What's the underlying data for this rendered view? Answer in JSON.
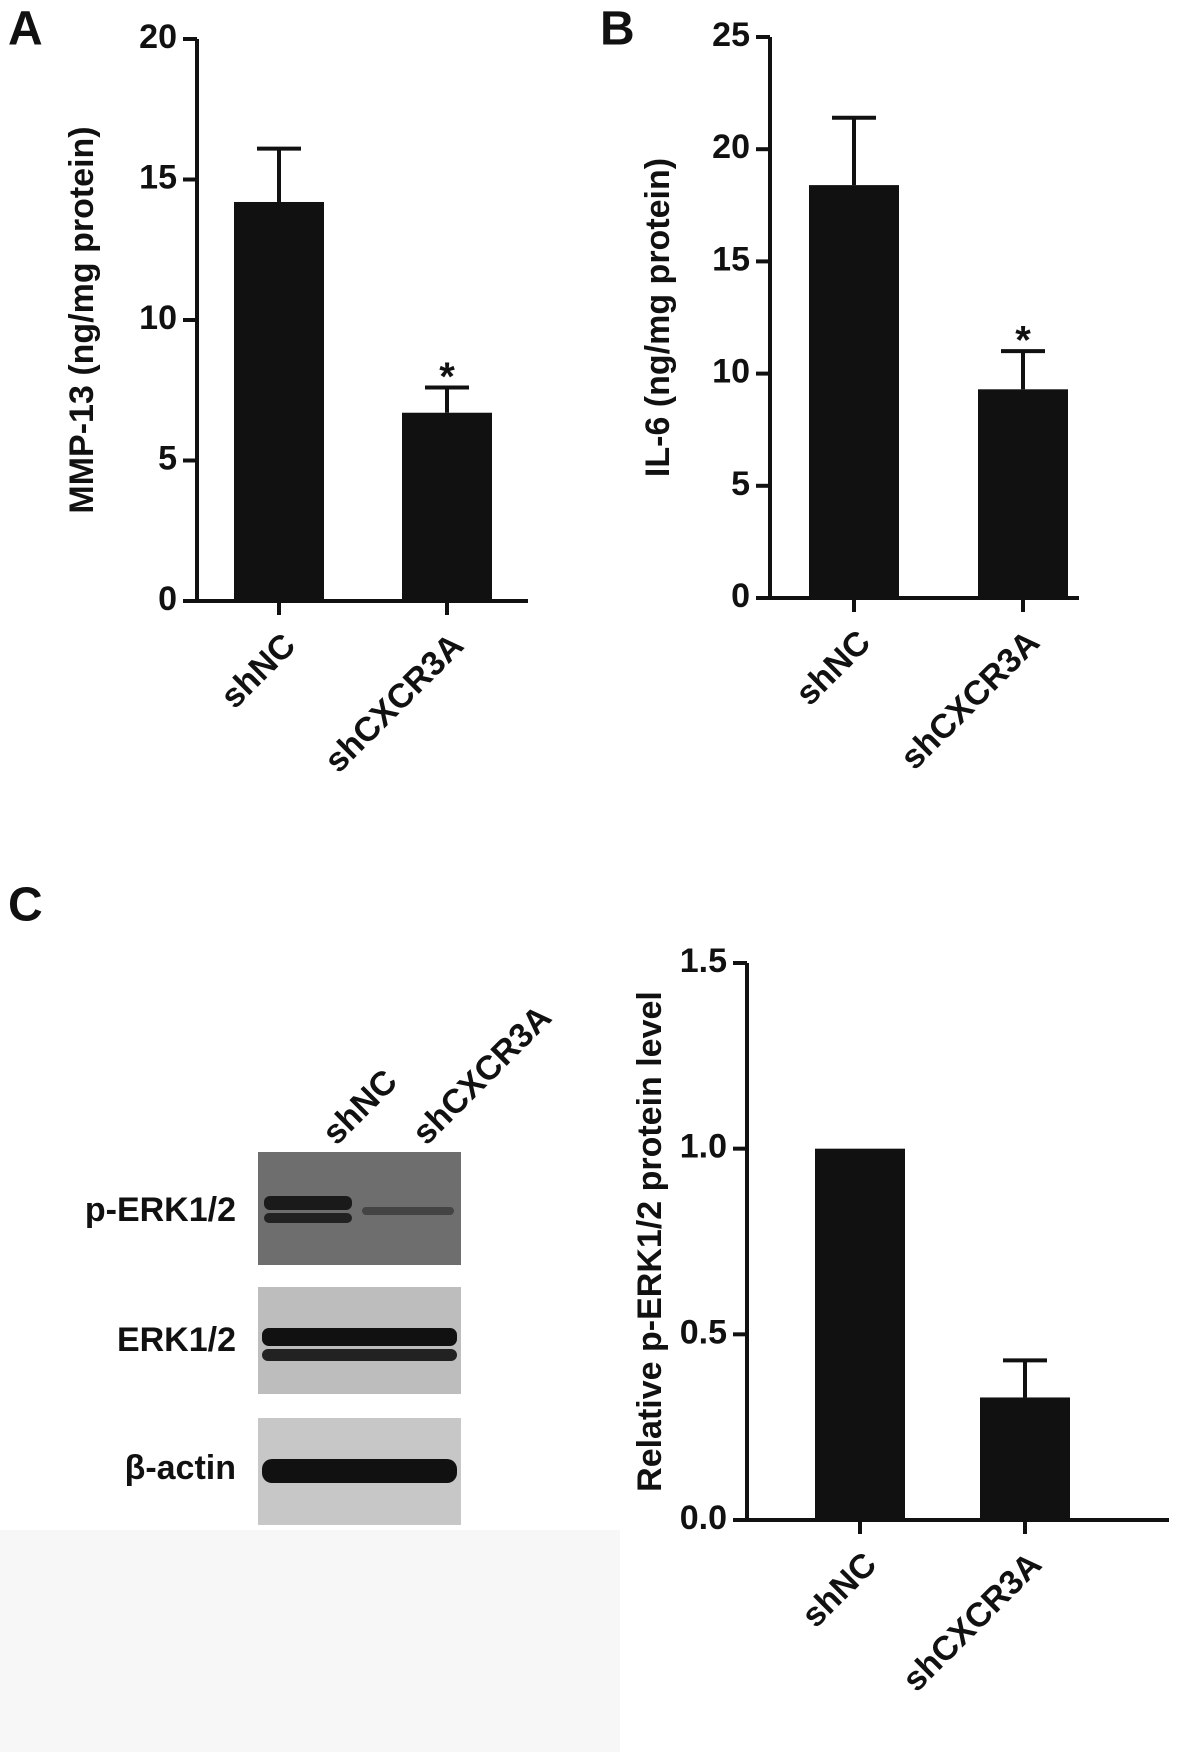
{
  "panels": [
    "A",
    "B",
    "C"
  ],
  "blot": {
    "lanes": [
      "shNC",
      "shCXCR3A"
    ],
    "rows": [
      "p-ERK1/2",
      "ERK1/2",
      "β-actin"
    ]
  },
  "chart_data": [
    {
      "type": "bar",
      "y_label": "MMP-13 (ng/mg protein)",
      "categories": [
        "shNC",
        "shCXCR3A"
      ],
      "values": [
        14.2,
        6.7
      ],
      "errors": [
        1.9,
        0.9
      ],
      "annotations": [
        null,
        "*"
      ],
      "color": "#111111",
      "ylim": [
        0,
        20
      ],
      "yticks": [
        0,
        5,
        10,
        15,
        20
      ]
    },
    {
      "type": "bar",
      "y_label": "IL-6 (ng/mg protein)",
      "categories": [
        "shNC",
        "shCXCR3A"
      ],
      "values": [
        18.4,
        9.3
      ],
      "errors": [
        3.0,
        1.7
      ],
      "annotations": [
        null,
        "*"
      ],
      "color": "#111111",
      "ylim": [
        0,
        25
      ],
      "yticks": [
        0,
        5,
        10,
        15,
        20,
        25
      ]
    },
    {
      "type": "bar",
      "y_label": "Relative p-ERK1/2 protein level",
      "categories": [
        "shNC",
        "shCXCR3A"
      ],
      "values": [
        1.0,
        0.33
      ],
      "errors": [
        null,
        0.1
      ],
      "color": "#111111",
      "ylim": [
        0,
        1.5
      ],
      "yticks": [
        {
          "value": 0,
          "label": "0.0"
        },
        0.5,
        {
          "value": 1,
          "label": "1.0"
        },
        1.5
      ]
    }
  ]
}
